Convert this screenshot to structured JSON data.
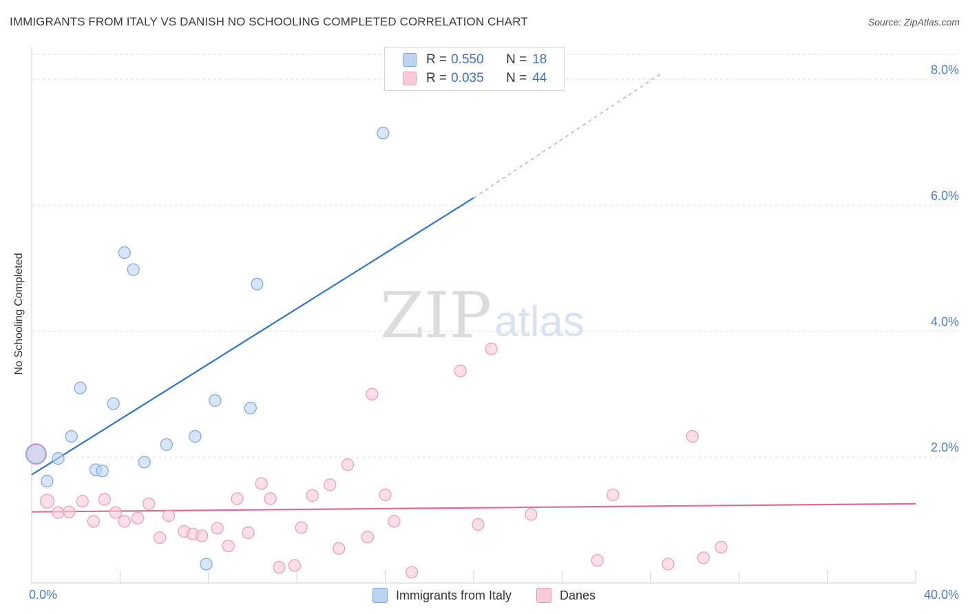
{
  "title": "IMMIGRANTS FROM ITALY VS DANISH NO SCHOOLING COMPLETED CORRELATION CHART",
  "source": "Source: ZipAtlas.com",
  "watermark": {
    "zip": "ZIP",
    "atlas": "atlas"
  },
  "colors": {
    "italy_fill": "#bcd4f2",
    "italy_stroke": "#7aa6e0",
    "italy_line": "#2f73cc",
    "danes_fill": "#f9cad8",
    "danes_stroke": "#eb9ab4",
    "danes_line": "#e26a93"
  },
  "legend": {
    "rows": [
      {
        "r_label": "R =",
        "r_value": "0.550",
        "n_label": "N =",
        "n_value": "18"
      },
      {
        "r_label": "R =",
        "r_value": "0.035",
        "n_label": "N =",
        "n_value": "44"
      }
    ]
  },
  "bottom_legend": {
    "italy": "Immigrants from Italy",
    "danes": "Danes"
  },
  "chart_data": {
    "type": "scatter",
    "title": "IMMIGRANTS FROM ITALY VS DANISH NO SCHOOLING COMPLETED CORRELATION CHART",
    "xlabel": "",
    "ylabel": "No Schooling Completed",
    "xlim": [
      0,
      40
    ],
    "ylim": [
      0,
      8.4
    ],
    "x_tick_labels": [
      "0.0%",
      "40.0%"
    ],
    "y_ticks": [
      2,
      4,
      6,
      8
    ],
    "y_tick_labels": [
      "2.0%",
      "4.0%",
      "6.0%",
      "8.0%"
    ],
    "grid": true,
    "legend_position": "top-center",
    "series": [
      {
        "name": "Immigrants from Italy",
        "points": [
          [
            0.2,
            2.05
          ],
          [
            0.7,
            1.62
          ],
          [
            1.2,
            1.98
          ],
          [
            1.8,
            2.33
          ],
          [
            2.2,
            3.1
          ],
          [
            2.9,
            1.8
          ],
          [
            3.2,
            1.78
          ],
          [
            3.7,
            2.85
          ],
          [
            4.2,
            5.25
          ],
          [
            4.6,
            4.98
          ],
          [
            5.1,
            1.92
          ],
          [
            6.1,
            2.2
          ],
          [
            7.4,
            2.33
          ],
          [
            7.9,
            0.3
          ],
          [
            8.3,
            2.9
          ],
          [
            9.9,
            2.78
          ],
          [
            10.2,
            4.75
          ],
          [
            15.9,
            7.15
          ]
        ],
        "trend": {
          "x": [
            0,
            20
          ],
          "y": [
            1.72,
            6.12
          ],
          "dashed_to": [
            28.5,
            8.1
          ]
        }
      },
      {
        "name": "Danes",
        "points": [
          [
            0.2,
            2.05
          ],
          [
            0.7,
            1.3
          ],
          [
            1.2,
            1.12
          ],
          [
            1.7,
            1.13
          ],
          [
            2.3,
            1.3
          ],
          [
            2.8,
            0.98
          ],
          [
            3.3,
            1.33
          ],
          [
            3.8,
            1.12
          ],
          [
            4.2,
            0.98
          ],
          [
            4.8,
            1.03
          ],
          [
            5.3,
            1.26
          ],
          [
            5.8,
            0.72
          ],
          [
            6.2,
            1.07
          ],
          [
            6.9,
            0.82
          ],
          [
            7.3,
            0.78
          ],
          [
            7.7,
            0.75
          ],
          [
            8.4,
            0.87
          ],
          [
            8.9,
            0.59
          ],
          [
            9.3,
            1.34
          ],
          [
            9.8,
            0.8
          ],
          [
            10.4,
            1.58
          ],
          [
            10.8,
            1.34
          ],
          [
            11.2,
            0.25
          ],
          [
            11.9,
            0.28
          ],
          [
            12.2,
            0.88
          ],
          [
            12.7,
            1.39
          ],
          [
            13.5,
            1.56
          ],
          [
            13.9,
            0.55
          ],
          [
            14.3,
            1.88
          ],
          [
            15.2,
            0.73
          ],
          [
            15.4,
            3.0
          ],
          [
            16.0,
            1.4
          ],
          [
            16.4,
            0.98
          ],
          [
            17.2,
            0.17
          ],
          [
            19.4,
            3.37
          ],
          [
            20.2,
            0.93
          ],
          [
            20.8,
            3.72
          ],
          [
            22.6,
            1.09
          ],
          [
            25.6,
            0.36
          ],
          [
            26.3,
            1.4
          ],
          [
            28.8,
            0.3
          ],
          [
            29.9,
            2.33
          ],
          [
            30.4,
            0.4
          ],
          [
            31.2,
            0.57
          ]
        ],
        "trend": {
          "x": [
            0,
            40
          ],
          "y": [
            1.13,
            1.26
          ]
        }
      }
    ]
  }
}
